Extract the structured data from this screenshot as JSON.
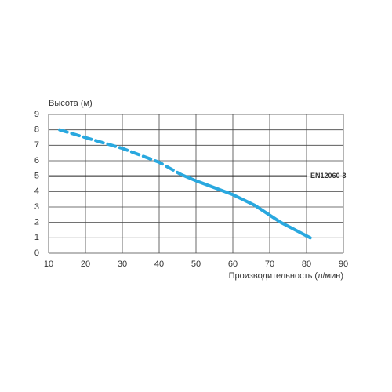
{
  "chart_data": {
    "type": "line",
    "y_label": "Высота (м)",
    "x_label": "Производительность (л/мин)",
    "xlim": [
      10,
      90
    ],
    "ylim": [
      0,
      9
    ],
    "xticks": [
      10,
      20,
      30,
      40,
      50,
      60,
      70,
      80,
      90
    ],
    "yticks": [
      0,
      1,
      2,
      3,
      4,
      5,
      6,
      7,
      8,
      9
    ],
    "grid": true,
    "series": [
      {
        "color": "#29a8df",
        "dash": true,
        "x": [
          13,
          20,
          30,
          40,
          46
        ],
        "values": [
          8,
          7.5,
          6.8,
          5.9,
          5.1
        ]
      },
      {
        "color": "#29a8df",
        "dash": false,
        "x": [
          46,
          50,
          60,
          66,
          73,
          81
        ],
        "values": [
          5.1,
          4.7,
          3.8,
          3.1,
          2,
          1
        ]
      }
    ],
    "reference_line": {
      "y": 5,
      "x": [
        10,
        80
      ],
      "label": "EN12060-3",
      "color": "#222222",
      "label_color": "#29a8df"
    }
  }
}
